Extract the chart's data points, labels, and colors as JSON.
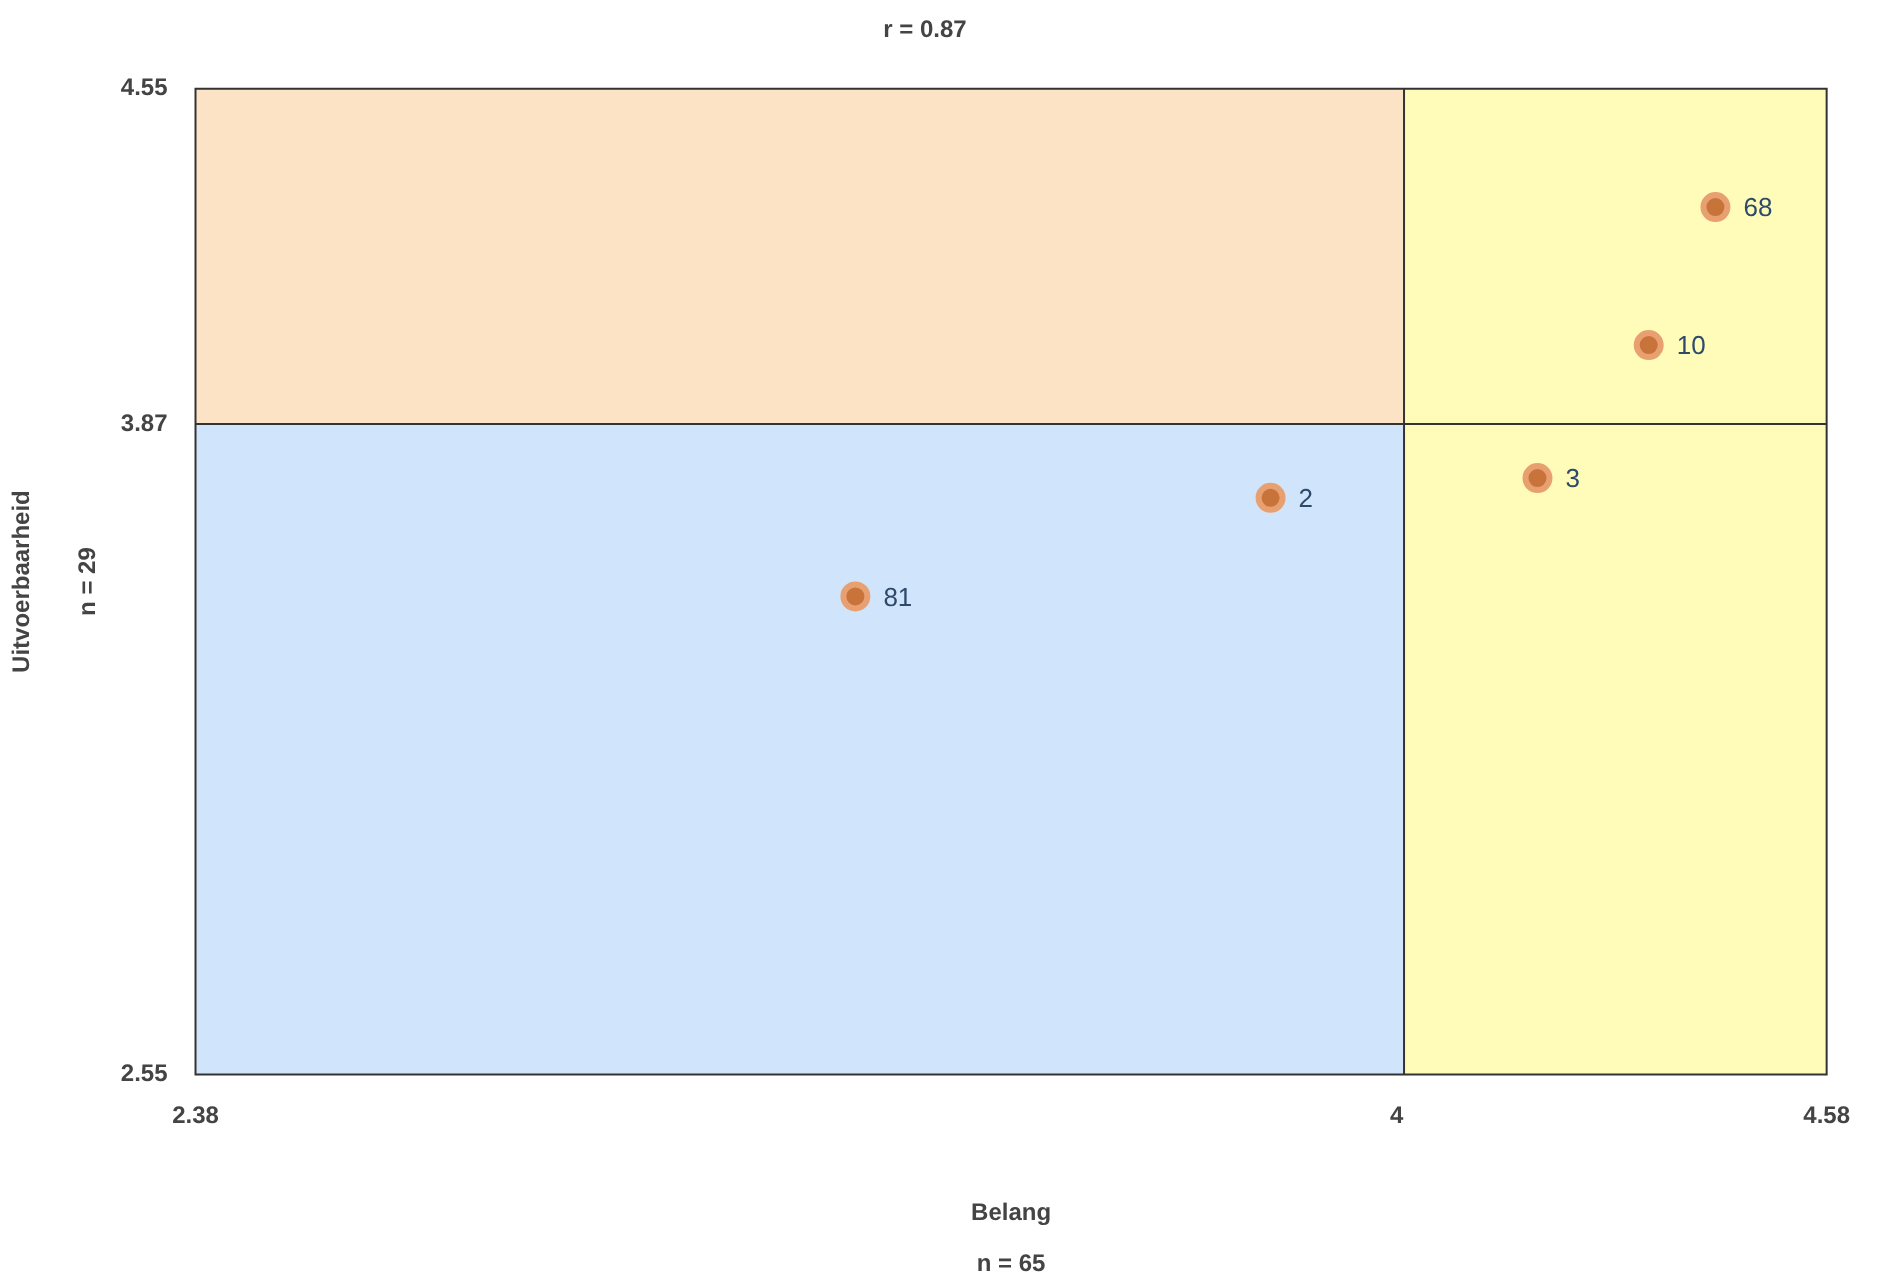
{
  "chart_data": {
    "type": "scatter",
    "title": "r = 0.87",
    "xlabel": "Belang",
    "ylabel": "Uitvoerbaarheid",
    "annotations": [
      "n = 65",
      "n = 29",
      {
        "text": "68",
        "x": 4.43,
        "y": 4.31
      },
      {
        "text": "10",
        "x": 4.34,
        "y": 4.03
      },
      {
        "text": "3",
        "x": 4.19,
        "y": 3.76
      },
      {
        "text": "2",
        "x": 3.83,
        "y": 3.72
      },
      {
        "text": "81",
        "x": 3.27,
        "y": 3.52
      }
    ],
    "x": [
      4.43,
      4.34,
      4.19,
      3.83,
      3.27
    ],
    "series": [
      {
        "color": "#c8733a",
        "values": [
          4.31,
          4.03,
          3.76,
          3.72,
          3.52
        ]
      }
    ],
    "xlim": [
      2.38,
      4.58
    ],
    "xticks": [
      2.38,
      4,
      4.58
    ],
    "ylim": [
      2.55,
      4.55
    ],
    "yticks": [
      2.55,
      3.87,
      4.55
    ],
    "ref_lines": [
      {
        "axis": "x",
        "value": 4.01,
        "color": "#333333"
      },
      {
        "axis": "y",
        "value": 3.87,
        "color": "#333333"
      }
    ],
    "bands": [
      {
        "axis": "y",
        "from": 2.55,
        "to": 3.87,
        "color": "#d0e5fb"
      },
      {
        "axis": "y",
        "from": 3.87,
        "to": 4.55,
        "color": "#fde3c6"
      },
      {
        "axis": "x",
        "from": 4.01,
        "to": 4.58,
        "color": "#fffbb9"
      }
    ],
    "grid": false,
    "legend": false,
    "marker": "circle"
  }
}
